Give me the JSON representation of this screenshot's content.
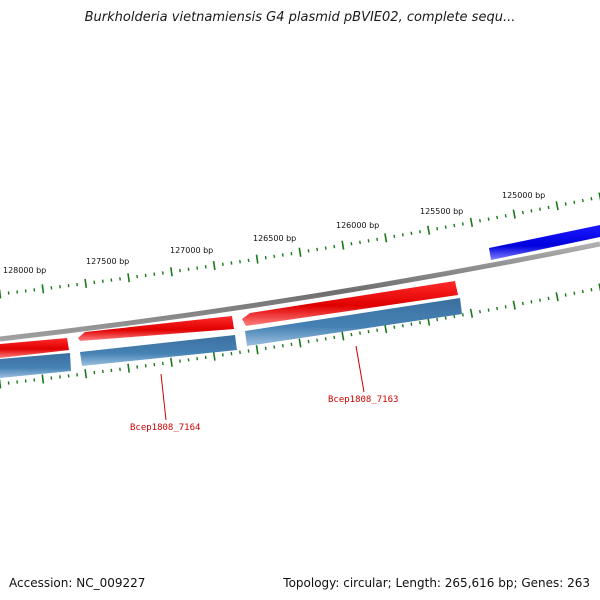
{
  "title": "Burkholderia vietnamiensis G4 plasmid pBVIE02, complete sequ...",
  "ruler": {
    "labels": [
      "125000 bp",
      "125500 bp",
      "126000 bp",
      "126500 bp",
      "127000 bp",
      "127500 bp",
      "128000 bp"
    ]
  },
  "genes": {
    "labels": [
      "Bcep1808_7163",
      "Bcep1808_7164"
    ]
  },
  "colors": {
    "forward_gene": "#ff0000",
    "reverse_gene": "#4682b4",
    "neighbor_gene": "#0000ff",
    "backbone": "#808080",
    "ticks": "#1a7a1a",
    "gene_label": "#cc0000"
  },
  "footer": {
    "accession": "Accession: NC_009227",
    "summary": "Topology: circular; Length: 265,616 bp; Genes: 263"
  }
}
